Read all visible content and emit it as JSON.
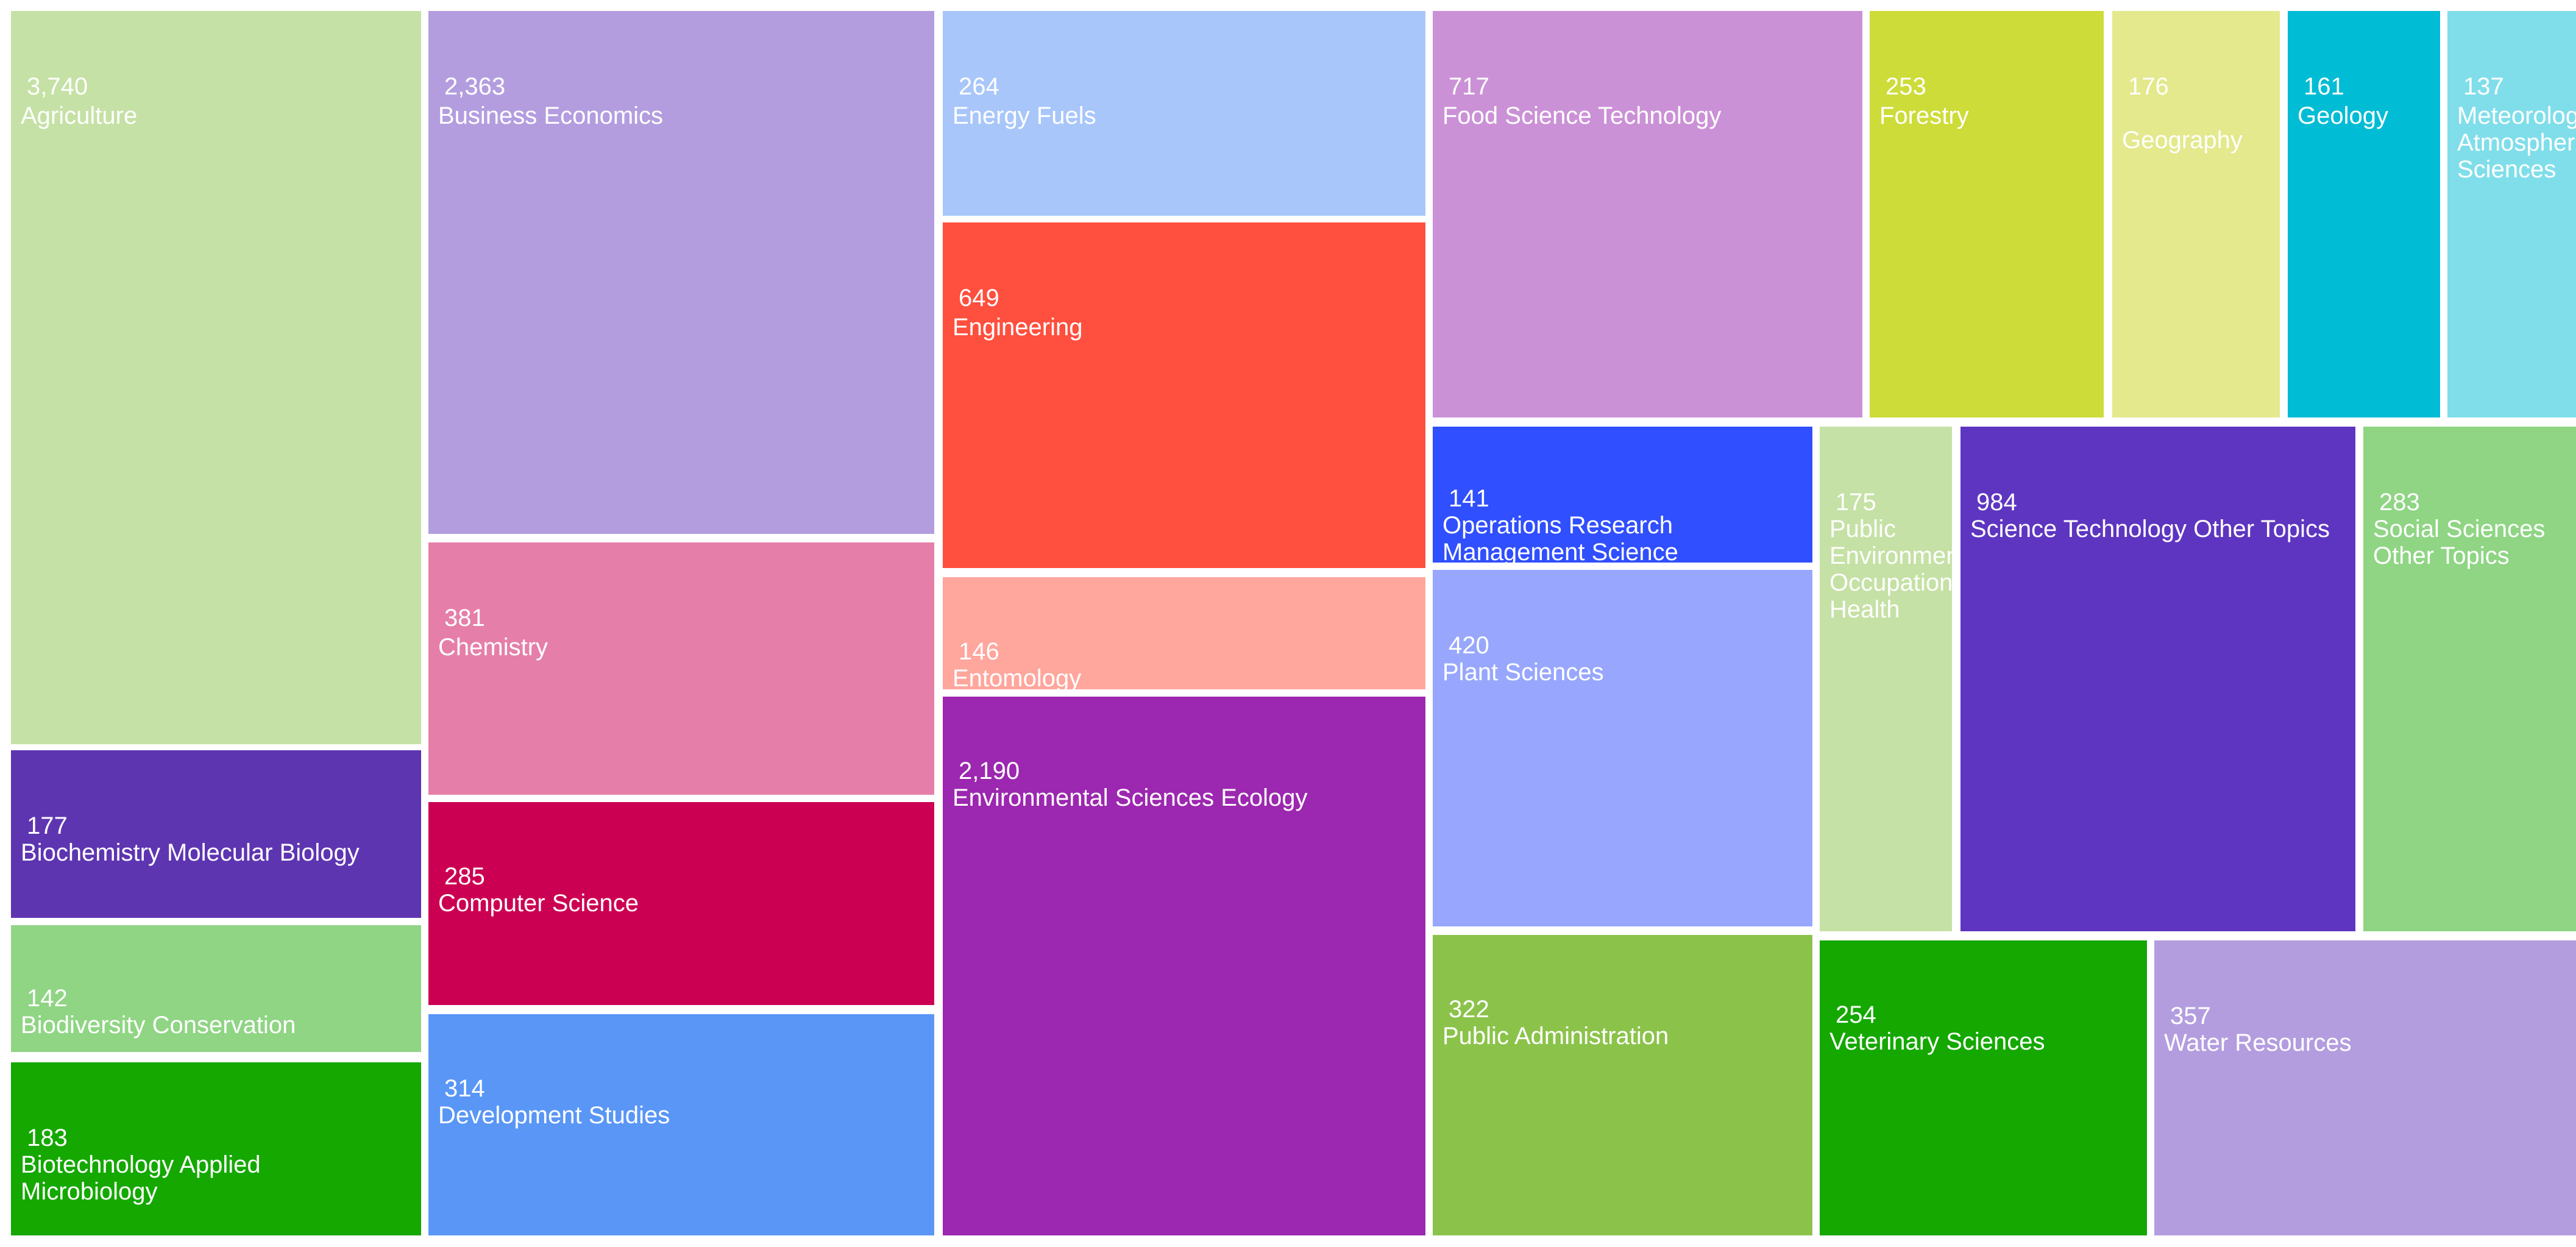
{
  "chart_data": {
    "type": "treemap",
    "items": [
      {
        "value_label": "3,740",
        "value": 3740,
        "name": "Agriculture",
        "color": "#c5e1a5"
      },
      {
        "value_label": "177",
        "value": 177,
        "name": "Biochemistry Molecular Biology",
        "color": "#5e35b1"
      },
      {
        "value_label": "142",
        "value": 142,
        "name": "Biodiversity Conservation",
        "color": "#8fd584"
      },
      {
        "value_label": "183",
        "value": 183,
        "name": "Biotechnology Applied Microbiology",
        "color": "#14a800"
      },
      {
        "value_label": "2,363",
        "value": 2363,
        "name": "Business Economics",
        "color": "#b39ddf"
      },
      {
        "value_label": "381",
        "value": 381,
        "name": "Chemistry",
        "color": "#e57fa9"
      },
      {
        "value_label": "285",
        "value": 285,
        "name": "Computer Science",
        "color": "#cc0052"
      },
      {
        "value_label": "314",
        "value": 314,
        "name": "Development Studies",
        "color": "#5996f6"
      },
      {
        "value_label": "264",
        "value": 264,
        "name": "Energy Fuels",
        "color": "#a8c6fa"
      },
      {
        "value_label": "649",
        "value": 649,
        "name": "Engineering",
        "color": "#ff4f3e"
      },
      {
        "value_label": "146",
        "value": 146,
        "name": "Entomology",
        "color": "#ffa69d"
      },
      {
        "value_label": "2,190",
        "value": 2190,
        "name": "Environmental Sciences Ecology",
        "color": "#9c27b0"
      },
      {
        "value_label": "717",
        "value": 717,
        "name": "Food Science Technology",
        "color": "#cb91d6"
      },
      {
        "value_label": "253",
        "value": 253,
        "name": "Forestry",
        "color": "#cddc39"
      },
      {
        "value_label": "176",
        "value": 176,
        "name": "Geography",
        "color": "#e3e98c"
      },
      {
        "value_label": "161",
        "value": 161,
        "name": "Geology",
        "color": "#00bcd4"
      },
      {
        "value_label": "137",
        "value": 137,
        "name": "Meteorology Atmospheric Sciences",
        "color": "#80deea"
      },
      {
        "value_label": "141",
        "value": 141,
        "name": "Operations Research Management Science",
        "color": "#304ffe"
      },
      {
        "value_label": "420",
        "value": 420,
        "name": "Plant Sciences",
        "color": "#98a7fd"
      },
      {
        "value_label": "322",
        "value": 322,
        "name": "Public Administration",
        "color": "#8bc34a"
      },
      {
        "value_label": "175",
        "value": 175,
        "name": "Public Environmental Occupational Health",
        "color": "#c5e1a5"
      },
      {
        "value_label": "984",
        "value": 984,
        "name": "Science Technology Other Topics",
        "color": "#5e35c1"
      },
      {
        "value_label": "283",
        "value": 283,
        "name": "Social Sciences Other Topics",
        "color": "#8fd584"
      },
      {
        "value_label": "254",
        "value": 254,
        "name": "Veterinary Sciences",
        "color": "#14a800"
      },
      {
        "value_label": "357",
        "value": 357,
        "name": "Water Resources",
        "color": "#b39ddf"
      }
    ]
  }
}
